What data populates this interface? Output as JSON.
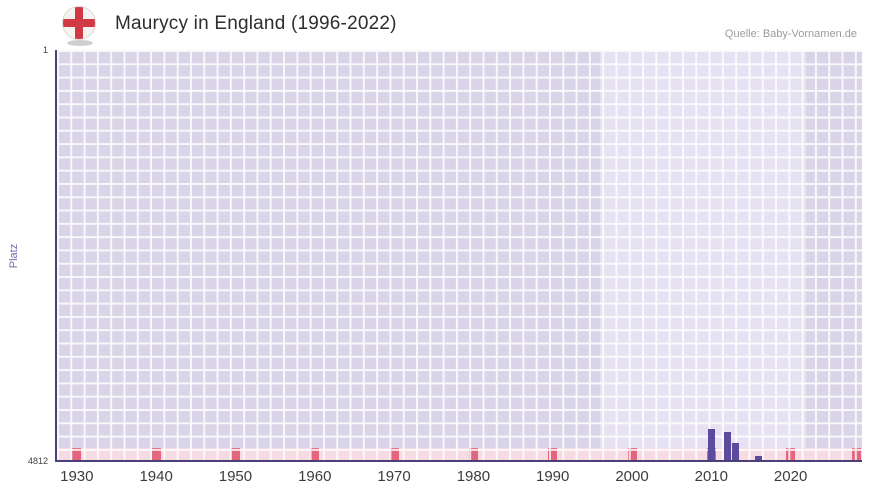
{
  "header": {
    "title": "Maurycy in England (1996-2022)",
    "source": "Quelle: Baby-Vornamen.de",
    "flag": "england-flag-icon"
  },
  "chart_data": {
    "type": "bar",
    "title": "Maurycy in England (1996-2022)",
    "xlabel": "",
    "ylabel": "Platz",
    "y_axis_inverted": true,
    "y_top_label": "1",
    "y_bottom_label": "4812",
    "ylim": [
      1,
      4812
    ],
    "x_range_years": [
      1927.5,
      2029
    ],
    "x_ticks": [
      "1930",
      "1940",
      "1950",
      "1960",
      "1970",
      "1980",
      "1990",
      "2000",
      "2010",
      "2020"
    ],
    "highlight_period": [
      1996,
      2022
    ],
    "grid": true,
    "legend": false,
    "bars": [
      {
        "year": 2010,
        "platz": 4450
      },
      {
        "year": 2012,
        "platz": 4485
      },
      {
        "year": 2013,
        "platz": 4610
      },
      {
        "year": 2016,
        "platz": 4770
      }
    ],
    "colors": {
      "bar": "#5c4a9c",
      "axis": "#4a3f78",
      "plot_bg": "#d9d4e7",
      "plot_bg_highlight": "#e6e2f3",
      "grid_line": "#ffffff",
      "strip_bg": "#f7dbe2",
      "strip_tick": "#e2677e",
      "ylabel_color": "#7a68b0",
      "flag_red": "#cf3a45"
    }
  }
}
